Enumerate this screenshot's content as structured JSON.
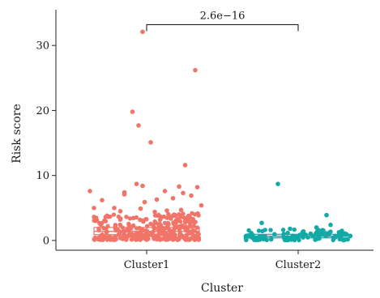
{
  "chart_data": {
    "type": "scatter",
    "subtype": "jitter-boxplot",
    "xlabel": "Cluster",
    "ylabel": "Risk score",
    "categories": [
      "Cluster1",
      "Cluster2"
    ],
    "ylim": [
      -1.5,
      35.5
    ],
    "yticks": [
      0,
      10,
      20,
      30
    ],
    "grid": false,
    "colors": {
      "Cluster1": "#F07468",
      "Cluster2": "#12A9A6"
    },
    "annotation": {
      "text": "2.6e−16",
      "between": [
        "Cluster1",
        "Cluster2"
      ],
      "y": 33.2
    },
    "box": {
      "Cluster1": {
        "q1": 0.9,
        "median": 1.4,
        "q3": 2.0
      },
      "Cluster2": {
        "q1": 0.4,
        "median": 0.65,
        "q3": 0.95
      }
    },
    "series": [
      {
        "category": "Cluster1",
        "points": [
          {
            "x": -0.02,
            "y": 32.1
          },
          {
            "x": 0.24,
            "y": 26.2
          },
          {
            "x": -0.07,
            "y": 19.8
          },
          {
            "x": -0.04,
            "y": 17.7
          },
          {
            "x": 0.02,
            "y": 15.1
          },
          {
            "x": 0.19,
            "y": 11.6
          },
          {
            "x": -0.05,
            "y": 8.7
          },
          {
            "x": -0.02,
            "y": 8.4
          },
          {
            "x": 0.16,
            "y": 8.3
          },
          {
            "x": 0.25,
            "y": 8.2
          },
          {
            "x": -0.28,
            "y": 7.6
          },
          {
            "x": 0.09,
            "y": 7.6
          },
          {
            "x": 0.18,
            "y": 7.3
          },
          {
            "x": -0.11,
            "y": 7.4
          },
          {
            "x": -0.11,
            "y": 7.1
          },
          {
            "x": 0.22,
            "y": 6.9
          },
          {
            "x": 0.13,
            "y": 6.5
          },
          {
            "x": -0.22,
            "y": 6.2
          },
          {
            "x": 0.05,
            "y": 6.3
          },
          {
            "x": -0.01,
            "y": 5.9
          },
          {
            "x": 0.27,
            "y": 5.4
          },
          {
            "x": -0.26,
            "y": 5.0
          },
          {
            "x": -0.16,
            "y": 5.0
          },
          {
            "x": -0.03,
            "y": 4.9
          },
          {
            "x": 0.1,
            "y": 4.6
          },
          {
            "x": 0.17,
            "y": 4.7
          },
          {
            "x": -0.13,
            "y": 4.5
          },
          {
            "x": 0.04,
            "y": 4.4
          }
        ]
      },
      {
        "category": "Cluster2",
        "points": [
          {
            "x": -0.1,
            "y": 8.7
          },
          {
            "x": 0.14,
            "y": 3.9
          },
          {
            "x": -0.18,
            "y": 2.7
          },
          {
            "x": 0.16,
            "y": 2.4
          },
          {
            "x": 0.09,
            "y": 2.0
          },
          {
            "x": -0.04,
            "y": 1.8
          },
          {
            "x": 0.12,
            "y": 1.6
          }
        ]
      }
    ]
  }
}
